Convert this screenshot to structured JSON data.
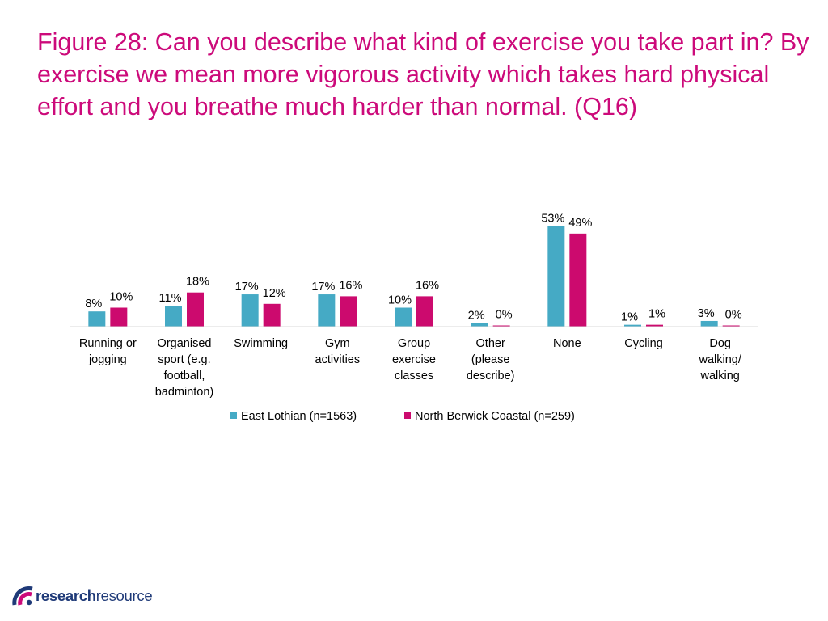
{
  "title": "Figure 28: Can you describe what kind of exercise you take part in? By exercise we mean more vigorous activity which takes hard physical effort and you breathe much harder than normal. (Q16)",
  "colors": {
    "title": "#cc0a7a",
    "east_lothian": "#45aac5",
    "north_berwick": "#cc0a6e"
  },
  "chart_data": {
    "type": "bar",
    "categories": [
      [
        "Running or",
        "jogging"
      ],
      [
        "Organised",
        "sport (e.g.",
        "football,",
        "badminton)"
      ],
      [
        "Swimming"
      ],
      [
        "Gym",
        "activities"
      ],
      [
        "Group",
        "exercise",
        "classes"
      ],
      [
        "Other",
        "(please",
        "describe)"
      ],
      [
        "None"
      ],
      [
        "Cycling"
      ],
      [
        "Dog",
        "walking/",
        "walking"
      ]
    ],
    "series": [
      {
        "name": "East Lothian (n=1563)",
        "values": [
          8,
          11,
          17,
          17,
          10,
          2,
          53,
          1,
          3
        ],
        "labels": [
          "8%",
          "11%",
          "17%",
          "17%",
          "10%",
          "2%",
          "53%",
          "1%",
          "3%"
        ]
      },
      {
        "name": "North Berwick Coastal (n=259)",
        "values": [
          10,
          18,
          12,
          16,
          16,
          0,
          49,
          1,
          0
        ],
        "labels": [
          "10%",
          "18%",
          "12%",
          "16%",
          "16%",
          "0%",
          "49%",
          "1%",
          "0%"
        ]
      }
    ],
    "ylim": [
      0,
      60
    ],
    "grid": false,
    "legend": "bottom",
    "unit": "%"
  },
  "logo": {
    "text_bold": "research",
    "text_regular": "resource"
  }
}
